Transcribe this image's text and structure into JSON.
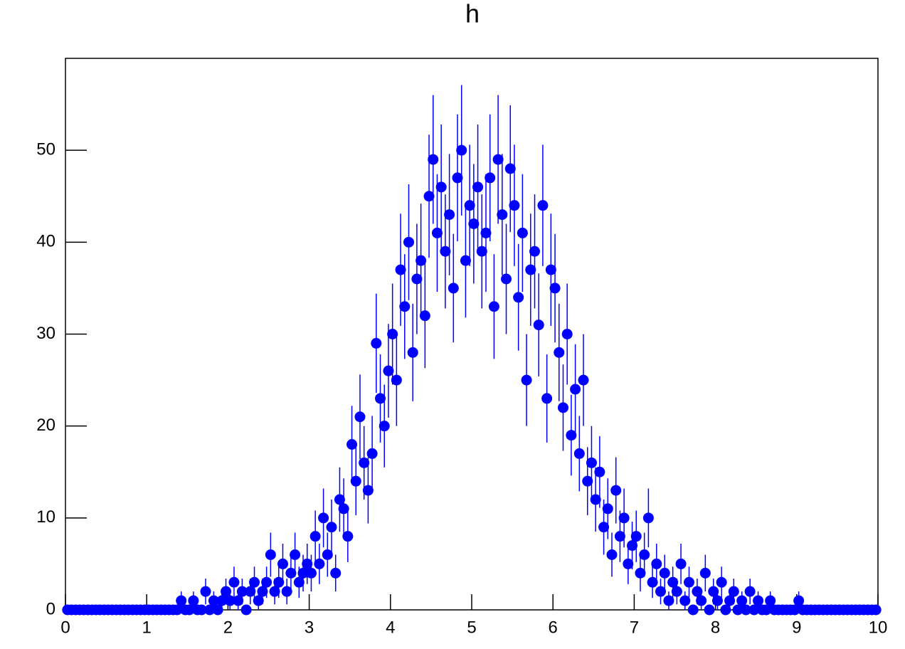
{
  "chart_data": {
    "type": "histogram",
    "title": "h",
    "color": "#0000ff",
    "xlim": [
      0,
      10
    ],
    "xticks": [
      0,
      1,
      2,
      3,
      4,
      5,
      6,
      7,
      8,
      9,
      10
    ],
    "ylim": [
      0,
      60
    ],
    "yticks": [
      0,
      10,
      20,
      30,
      40,
      50
    ],
    "bins": [
      0,
      0.05,
      0.1,
      0.15,
      0.2,
      0.25,
      0.3,
      0.35,
      0.4,
      0.45,
      0.5,
      0.55,
      0.6,
      0.65,
      0.7,
      0.75,
      0.8,
      0.85,
      0.9,
      0.95,
      1,
      1.05,
      1.1,
      1.15,
      1.2,
      1.25,
      1.3,
      1.35,
      1.4,
      1.45,
      1.5,
      1.55,
      1.6,
      1.65,
      1.7,
      1.75,
      1.8,
      1.85,
      1.9,
      1.95,
      2,
      2.05,
      2.1,
      2.15,
      2.2,
      2.25,
      2.3,
      2.35,
      2.4,
      2.45,
      2.5,
      2.55,
      2.6,
      2.65,
      2.7,
      2.75,
      2.8,
      2.85,
      2.9,
      2.95,
      3,
      3.05,
      3.1,
      3.15,
      3.2,
      3.25,
      3.3,
      3.35,
      3.4,
      3.45,
      3.5,
      3.55,
      3.6,
      3.65,
      3.7,
      3.75,
      3.8,
      3.85,
      3.9,
      3.95,
      4,
      4.05,
      4.1,
      4.15,
      4.2,
      4.25,
      4.3,
      4.35,
      4.4,
      4.45,
      4.5,
      4.55,
      4.6,
      4.65,
      4.7,
      4.75,
      4.8,
      4.85,
      4.9,
      4.95,
      5,
      5.05,
      5.1,
      5.15,
      5.2,
      5.25,
      5.3,
      5.35,
      5.4,
      5.45,
      5.5,
      5.55,
      5.6,
      5.65,
      5.7,
      5.75,
      5.8,
      5.85,
      5.9,
      5.95,
      6,
      6.05,
      6.1,
      6.15,
      6.2,
      6.25,
      6.3,
      6.35,
      6.4,
      6.45,
      6.5,
      6.55,
      6.6,
      6.65,
      6.7,
      6.75,
      6.8,
      6.85,
      6.9,
      6.95,
      7,
      7.05,
      7.1,
      7.15,
      7.2,
      7.25,
      7.3,
      7.35,
      7.4,
      7.45,
      7.5,
      7.55,
      7.6,
      7.65,
      7.7,
      7.75,
      7.8,
      7.85,
      7.9,
      7.95,
      8,
      8.05,
      8.1,
      8.15,
      8.2,
      8.25,
      8.3,
      8.35,
      8.4,
      8.45,
      8.5,
      8.55,
      8.6,
      8.65,
      8.7,
      8.75,
      8.8,
      8.85,
      8.9,
      8.95,
      9,
      9.05,
      9.1,
      9.15,
      9.2,
      9.25,
      9.3,
      9.35,
      9.4,
      9.45,
      9.5,
      9.55,
      9.6,
      9.65,
      9.7,
      9.75,
      9.8,
      9.85,
      9.9,
      9.95,
      10
    ],
    "values": [
      0,
      0,
      0,
      0,
      0,
      0,
      0,
      0,
      0,
      0,
      0,
      0,
      0,
      0,
      0,
      0,
      0,
      0,
      0,
      0,
      0,
      0,
      0,
      0,
      0,
      0,
      0,
      0,
      1,
      0,
      0,
      1,
      0,
      0,
      2,
      0,
      1,
      0,
      1,
      2,
      1,
      3,
      1,
      2,
      0,
      2,
      3,
      1,
      2,
      3,
      6,
      2,
      3,
      5,
      2,
      4,
      6,
      3,
      4,
      5,
      4,
      8,
      5,
      10,
      6,
      9,
      4,
      12,
      11,
      8,
      18,
      14,
      21,
      16,
      13,
      17,
      29,
      23,
      20,
      26,
      30,
      25,
      37,
      33,
      40,
      28,
      36,
      38,
      32,
      45,
      49,
      41,
      46,
      39,
      43,
      35,
      47,
      50,
      38,
      44,
      42,
      46,
      39,
      41,
      47,
      33,
      49,
      43,
      36,
      48,
      44,
      34,
      41,
      25,
      37,
      39,
      31,
      44,
      23,
      37,
      35,
      28,
      22,
      30,
      19,
      24,
      17,
      25,
      14,
      16,
      12,
      15,
      9,
      11,
      6,
      13,
      8,
      10,
      5,
      7,
      8,
      4,
      6,
      10,
      3,
      5,
      2,
      4,
      1,
      3,
      2,
      5,
      1,
      3,
      0,
      2,
      1,
      4,
      0,
      2,
      1,
      3,
      0,
      1,
      2,
      0,
      1,
      0,
      2,
      0,
      1,
      0,
      0,
      1,
      0,
      0,
      0,
      0,
      0,
      0,
      1,
      0,
      0,
      0,
      0,
      0,
      0,
      0,
      0,
      0,
      0,
      0,
      0,
      0,
      0,
      0,
      0,
      0,
      0,
      0
    ],
    "errors": [
      0,
      0,
      0,
      0,
      0,
      0,
      0,
      0,
      0,
      0,
      0,
      0,
      0,
      0,
      0,
      0,
      0,
      0,
      0,
      0,
      0,
      0,
      0,
      0,
      0,
      0,
      0,
      0,
      1,
      0,
      0,
      1,
      0,
      0,
      1.4,
      0,
      1,
      0,
      1,
      1.4,
      1,
      1.7,
      1,
      1.4,
      0,
      1.4,
      1.7,
      1,
      1.4,
      1.7,
      2.4,
      1.4,
      1.7,
      2.2,
      1.4,
      2,
      2.4,
      1.7,
      2,
      2.2,
      2,
      2.8,
      2.2,
      3.2,
      2.4,
      3,
      2,
      3.5,
      3.3,
      2.8,
      4.2,
      3.7,
      4.6,
      4,
      3.6,
      4.1,
      5.4,
      4.8,
      4.5,
      5.1,
      5.5,
      5,
      6.1,
      5.7,
      6.3,
      5.3,
      6,
      6.2,
      5.7,
      6.7,
      7,
      6.4,
      6.8,
      6.2,
      6.6,
      5.9,
      6.9,
      7.1,
      6.2,
      6.6,
      6.5,
      6.8,
      6.2,
      6.4,
      6.9,
      5.7,
      7,
      6.6,
      6,
      6.9,
      6.6,
      5.8,
      6.4,
      5,
      6.1,
      6.2,
      5.6,
      6.6,
      4.8,
      6.1,
      5.9,
      5.3,
      4.7,
      5.5,
      4.4,
      4.9,
      4.1,
      5,
      3.7,
      4,
      3.5,
      3.9,
      3,
      3.3,
      2.4,
      3.6,
      2.8,
      3.2,
      2.2,
      2.6,
      2.8,
      2,
      2.4,
      3.2,
      1.7,
      2.2,
      1.4,
      2,
      1,
      1.7,
      1.4,
      2.2,
      1,
      1.7,
      0,
      1.4,
      1,
      2,
      0,
      1.4,
      1,
      1.7,
      0,
      1,
      1.4,
      0,
      1,
      0,
      1.4,
      0,
      1,
      0,
      0,
      1,
      0,
      0,
      0,
      0,
      0,
      0,
      1,
      0,
      0,
      0,
      0,
      0,
      0,
      0,
      0,
      0,
      0,
      0,
      0,
      0,
      0,
      0,
      0,
      0,
      0,
      0
    ]
  }
}
